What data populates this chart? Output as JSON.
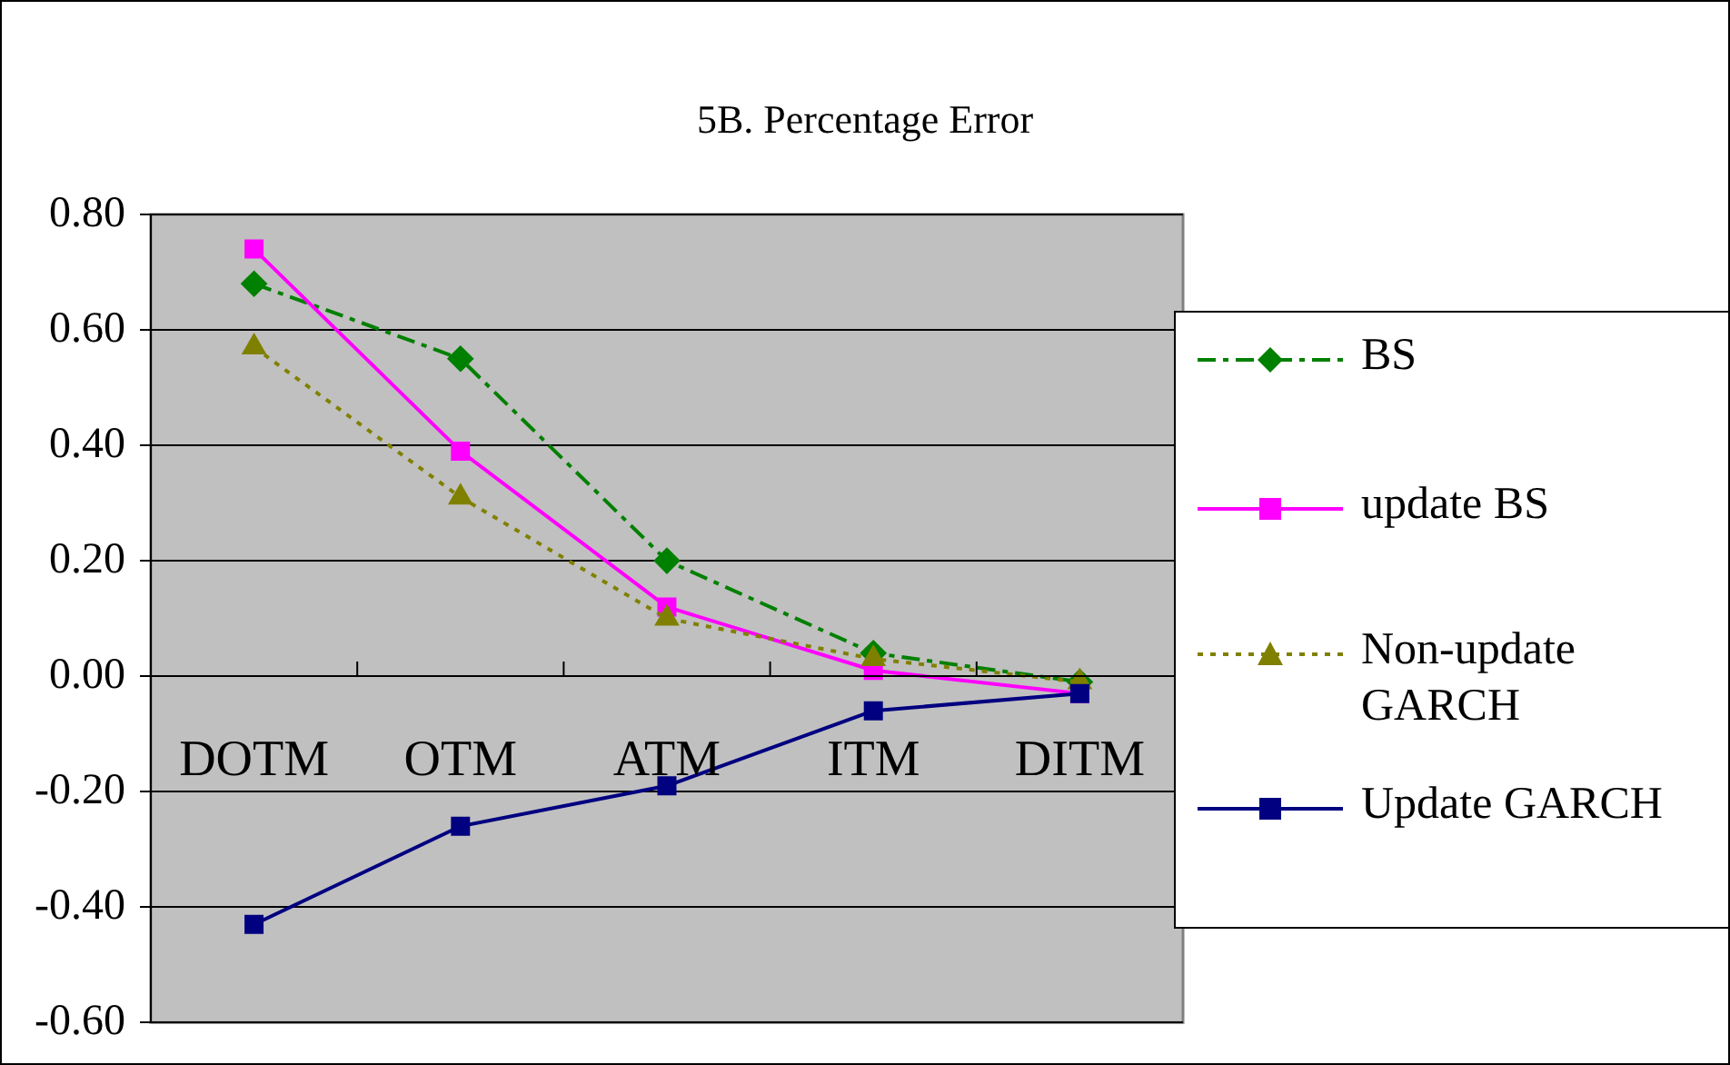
{
  "chart_data": {
    "type": "line",
    "title": "5B. Percentage Error",
    "categories": [
      "DOTM",
      "OTM",
      "ATM",
      "ITM",
      "DITM"
    ],
    "ylim": [
      -0.6,
      0.8
    ],
    "yticks": [
      {
        "value": -0.6,
        "label": "-0.60"
      },
      {
        "value": -0.4,
        "label": "-0.40"
      },
      {
        "value": -0.2,
        "label": "-0.20"
      },
      {
        "value": 0,
        "label": "0.00"
      },
      {
        "value": 0.2,
        "label": "0.20"
      },
      {
        "value": 0.4,
        "label": "0.40"
      },
      {
        "value": 0.6,
        "label": "0.60"
      },
      {
        "value": 0.8,
        "label": "0.80"
      }
    ],
    "grid": "y",
    "legend": "right",
    "series": [
      {
        "name": "BS",
        "color": "#008000",
        "marker": "diamond",
        "line_style": "dashed",
        "values": [
          0.68,
          0.55,
          0.2,
          0.04,
          -0.01
        ]
      },
      {
        "name": "update BS",
        "color": "#ff00ff",
        "marker": "square",
        "line_style": "solid",
        "values": [
          0.74,
          0.39,
          0.12,
          0.01,
          -0.03
        ]
      },
      {
        "name": "Non-update GARCH",
        "color": "#808000",
        "marker": "triangle",
        "line_style": "dotted",
        "values": [
          0.57,
          0.31,
          0.1,
          0.03,
          -0.01
        ]
      },
      {
        "name": "Update GARCH",
        "color": "#000080",
        "marker": "square",
        "line_style": "solid",
        "values": [
          -0.43,
          -0.26,
          -0.19,
          -0.06,
          -0.03
        ]
      }
    ]
  }
}
